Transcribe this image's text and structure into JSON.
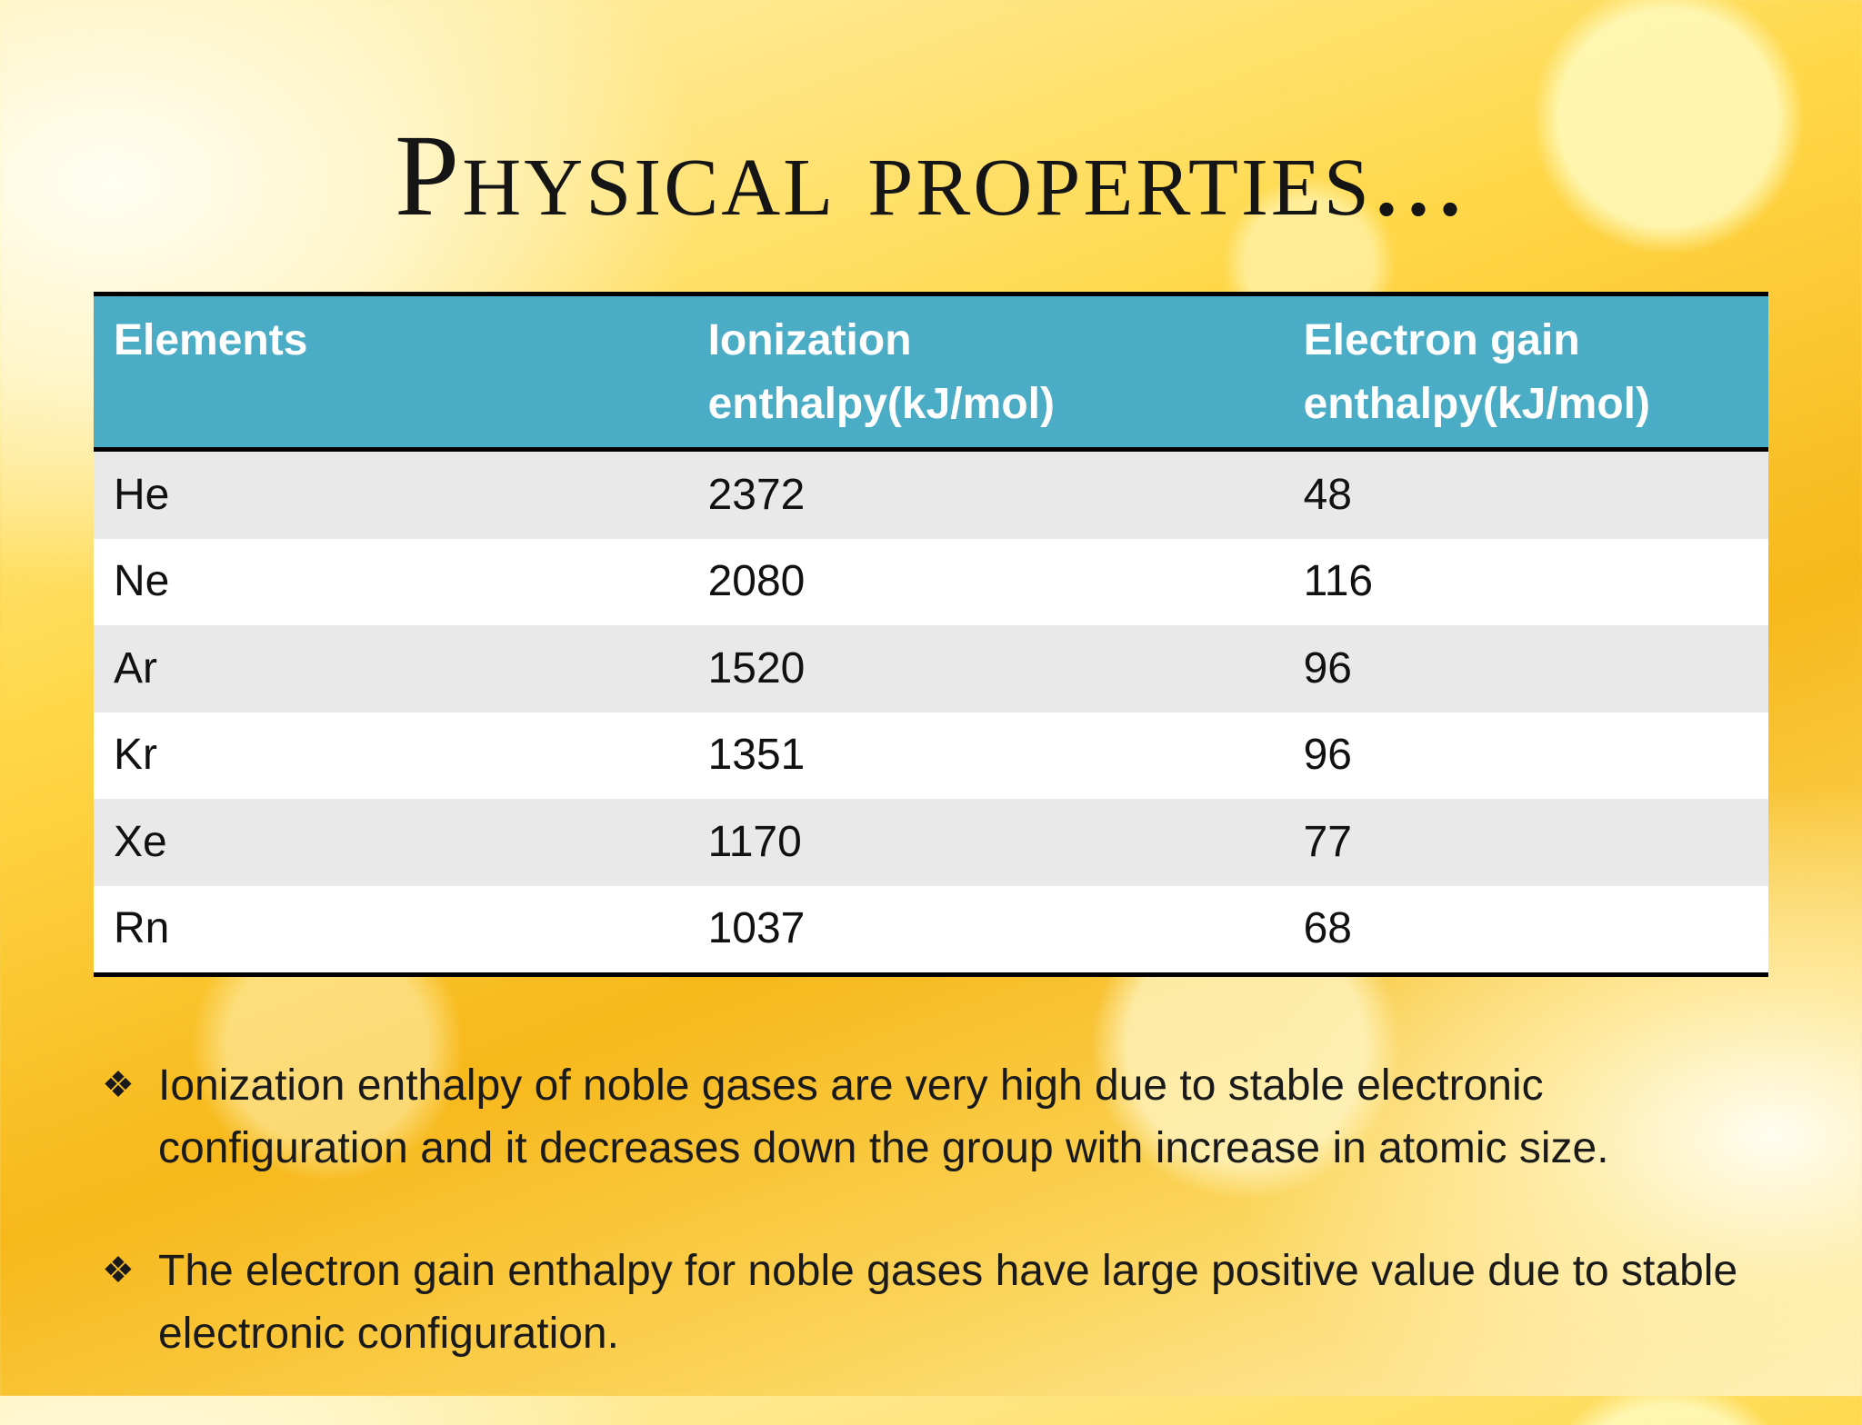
{
  "header": {
    "title": "Physical properties..."
  },
  "table": {
    "columns": [
      "Elements",
      "Ionization enthalpy(kJ/mol)",
      "Electron gain enthalpy(kJ/mol)"
    ],
    "rows": [
      [
        "He",
        2372,
        48
      ],
      [
        "Ne",
        2080,
        116
      ],
      [
        "Ar",
        1520,
        96
      ],
      [
        "Kr",
        1351,
        96
      ],
      [
        "Xe",
        1170,
        77
      ],
      [
        "Rn",
        1037,
        68
      ]
    ]
  },
  "bullets": [
    "Ionization enthalpy of noble gases  are very high due to stable electronic configuration and it decreases down the group with increase in atomic size.",
    "The electron gain enthalpy for noble gases have large positive value due to stable electronic configuration."
  ]
}
